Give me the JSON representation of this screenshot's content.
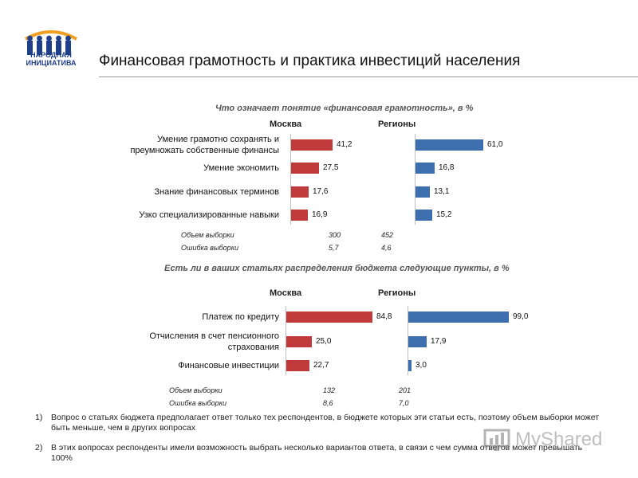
{
  "logo": {
    "line1": "НАРОДНАЯ",
    "line2": "ИНИЦИАТИВА"
  },
  "title": "Финансовая грамотность и практика инвестиций населения",
  "chart_data": [
    {
      "type": "bar",
      "orientation": "horizontal",
      "title": "Что означает понятие «финансовая грамотность», в %",
      "categories": [
        [
          "Умение грамотно сохранять и",
          "преумножать собственные финансы"
        ],
        [
          "Умение экономить"
        ],
        [
          "Знание финансовых терминов"
        ],
        [
          "Узко специализированные навыки"
        ]
      ],
      "series": [
        {
          "name": "Москва",
          "color": "#c0393b",
          "values": [
            41.2,
            27.5,
            17.6,
            16.9
          ],
          "labels": [
            "41,2",
            "27,5",
            "17,6",
            "16,9"
          ]
        },
        {
          "name": "Регионы",
          "color": "#3d6fae",
          "values": [
            61.0,
            16.8,
            13.1,
            15.2
          ],
          "labels": [
            "61,0",
            "16,8",
            "13,1",
            "15,2"
          ]
        }
      ],
      "sample": {
        "label": "Объем выборки",
        "values": [
          "300",
          "452"
        ]
      },
      "error": {
        "label": "Ошибка выборки",
        "values": [
          "5,7",
          "4,6"
        ]
      },
      "xlim": [
        0,
        100
      ]
    },
    {
      "type": "bar",
      "orientation": "horizontal",
      "title": "Есть ли в ваших статьях распределения бюджета следующие пункты, в %",
      "categories": [
        [
          "Платеж по кредиту"
        ],
        [
          "Отчисления в счет пенсионного",
          "страхования"
        ],
        [
          "Финансовые инвестиции"
        ]
      ],
      "series": [
        {
          "name": "Москва",
          "color": "#c0393b",
          "values": [
            84.8,
            25.0,
            22.7
          ],
          "labels": [
            "84,8",
            "25,0",
            "22,7"
          ]
        },
        {
          "name": "Регионы",
          "color": "#3d6fae",
          "values": [
            99.0,
            17.9,
            3.0
          ],
          "labels": [
            "99,0",
            "17,9",
            "3,0"
          ]
        }
      ],
      "sample": {
        "label": "Объем выборки",
        "values": [
          "132",
          "201"
        ]
      },
      "error": {
        "label": "Ошибка выборки",
        "values": [
          "8,6",
          "7,0"
        ]
      },
      "xlim": [
        0,
        100
      ]
    }
  ],
  "footnotes": [
    {
      "num": "1)",
      "text": "Вопрос о статьях бюджета предполагает ответ только тех респондентов, в бюджете которых эти статьи есть, поэтому объем выборки может быть меньше, чем в других вопросах"
    },
    {
      "num": "2)",
      "text": "В этих вопросах респонденты имели возможность выбрать несколько вариантов ответа, в связи с чем сумма ответов может превышать 100%"
    }
  ],
  "watermark": "MyShared"
}
